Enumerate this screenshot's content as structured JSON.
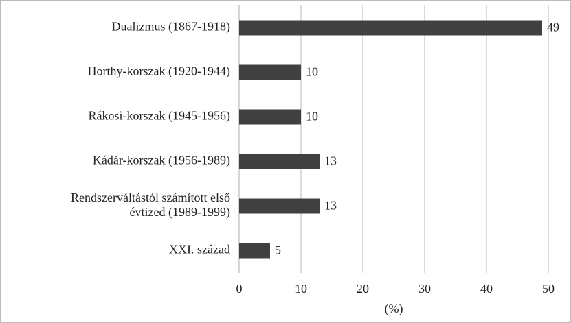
{
  "chart_data": {
    "type": "bar",
    "orientation": "horizontal",
    "categories": [
      "Dualizmus (1867-1918)",
      "Horthy-korszak (1920-1944)",
      "Rákosi-korszak (1945-1956)",
      "Kádár-korszak (1956-1989)",
      "Rendszerváltástól számított első évtized (1989-1999)",
      "XXI. század"
    ],
    "values": [
      49,
      10,
      10,
      13,
      13,
      5
    ],
    "color": "#404040",
    "xlim": [
      0,
      50
    ],
    "xticks": [
      0,
      10,
      20,
      30,
      40,
      50
    ],
    "xlabel": "(%)",
    "grid": true
  }
}
